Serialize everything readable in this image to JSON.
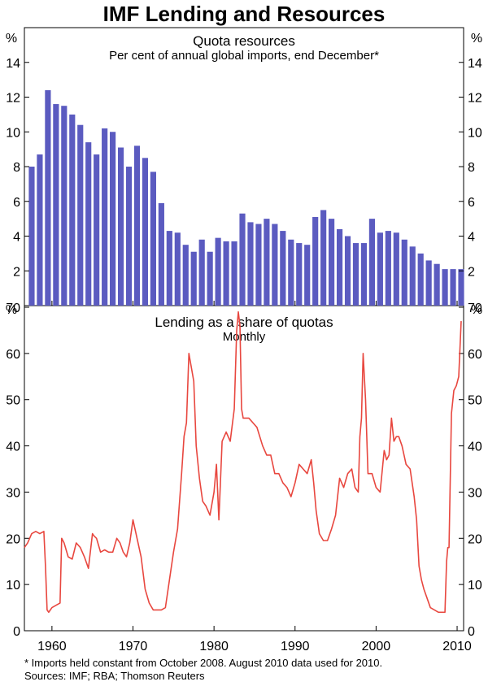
{
  "title": "IMF Lending and Resources",
  "footnotes": {
    "note": "*  Imports held constant from October 2008. August 2010 data used for 2010.",
    "sources": "Sources: IMF; RBA; Thomson Reuters"
  },
  "colors": {
    "bar": "#5b5bc0",
    "line": "#e8473f",
    "axis": "#000000"
  },
  "x_axis": {
    "ticks": [
      1960,
      1970,
      1980,
      1990,
      2000,
      2010
    ],
    "tick_labels": [
      "1960",
      "1970",
      "1980",
      "1990",
      "2000",
      "2010"
    ],
    "range": [
      1956.6,
      2010.8
    ]
  },
  "chart_data": [
    {
      "type": "bar",
      "title": "Quota resources",
      "subtitle": "Per cent of annual global imports, end December*",
      "unit_left": "%",
      "unit_right": "%",
      "ylim": [
        0,
        16
      ],
      "yticks": [
        2,
        4,
        6,
        8,
        10,
        12,
        14
      ],
      "categories": [
        1957,
        1958,
        1959,
        1960,
        1961,
        1962,
        1963,
        1964,
        1965,
        1966,
        1967,
        1968,
        1969,
        1970,
        1971,
        1972,
        1973,
        1974,
        1975,
        1976,
        1977,
        1978,
        1979,
        1980,
        1981,
        1982,
        1983,
        1984,
        1985,
        1986,
        1987,
        1988,
        1989,
        1990,
        1991,
        1992,
        1993,
        1994,
        1995,
        1996,
        1997,
        1998,
        1999,
        2000,
        2001,
        2002,
        2003,
        2004,
        2005,
        2006,
        2007,
        2008,
        2009,
        2010
      ],
      "values": [
        8.0,
        8.7,
        12.4,
        11.6,
        11.5,
        11.0,
        10.4,
        9.4,
        8.7,
        10.2,
        10.0,
        9.1,
        8.0,
        9.2,
        8.5,
        7.7,
        5.9,
        4.3,
        4.2,
        3.5,
        3.1,
        3.8,
        3.1,
        3.9,
        3.7,
        3.7,
        5.3,
        4.8,
        4.7,
        5.0,
        4.7,
        4.3,
        3.8,
        3.6,
        3.5,
        5.1,
        5.5,
        5.0,
        4.4,
        4.0,
        3.6,
        3.6,
        5.0,
        4.2,
        4.3,
        4.2,
        3.8,
        3.4,
        3.0,
        2.6,
        2.4,
        2.1,
        2.1,
        2.1
      ]
    },
    {
      "type": "line",
      "title": "Lending as a share of quotas",
      "subtitle": "Monthly",
      "unit_left": "%",
      "unit_right": "%",
      "ylim": [
        0,
        70
      ],
      "yticks": [
        0,
        10,
        20,
        30,
        40,
        50,
        60,
        70
      ],
      "x": [
        1956.6,
        1957.0,
        1957.5,
        1958.0,
        1958.5,
        1959.0,
        1959.2,
        1959.4,
        1959.6,
        1960.0,
        1960.5,
        1961.0,
        1961.2,
        1961.5,
        1962.0,
        1962.5,
        1963.0,
        1963.5,
        1964.0,
        1964.5,
        1965.0,
        1965.2,
        1965.5,
        1966.0,
        1966.5,
        1967.0,
        1967.5,
        1968.0,
        1968.4,
        1968.8,
        1969.2,
        1969.6,
        1970.0,
        1970.5,
        1971.0,
        1971.5,
        1972.0,
        1972.5,
        1973.0,
        1973.5,
        1974.0,
        1974.5,
        1975.0,
        1975.5,
        1976.0,
        1976.3,
        1976.6,
        1976.9,
        1977.2,
        1977.5,
        1977.8,
        1978.2,
        1978.6,
        1979.0,
        1979.5,
        1980.0,
        1980.3,
        1980.6,
        1981.0,
        1981.5,
        1982.0,
        1982.5,
        1982.8,
        1983.0,
        1983.2,
        1983.4,
        1983.6,
        1983.9,
        1984.3,
        1984.8,
        1985.3,
        1986.0,
        1986.5,
        1987.0,
        1987.5,
        1988.0,
        1988.5,
        1989.0,
        1989.5,
        1990.0,
        1990.5,
        1991.0,
        1991.5,
        1992.0,
        1992.3,
        1992.6,
        1993.0,
        1993.5,
        1994.0,
        1994.5,
        1995.0,
        1995.5,
        1996.0,
        1996.5,
        1997.0,
        1997.4,
        1997.8,
        1998.0,
        1998.2,
        1998.4,
        1998.7,
        1999.0,
        1999.5,
        2000.0,
        2000.5,
        2001.0,
        2001.3,
        2001.6,
        2001.9,
        2002.2,
        2002.5,
        2002.8,
        2003.2,
        2003.7,
        2004.2,
        2004.7,
        2005.0,
        2005.3,
        2005.6,
        2005.9,
        2006.3,
        2006.7,
        2007.2,
        2007.7,
        2008.2,
        2008.5,
        2008.7,
        2008.85,
        2009.0,
        2009.3,
        2009.6,
        2009.9,
        2010.2,
        2010.5
      ],
      "y": [
        18,
        19,
        21,
        21.5,
        21,
        21.5,
        14,
        4.5,
        4,
        5,
        5.5,
        6,
        20,
        19,
        16,
        15.5,
        19,
        18,
        16,
        13.5,
        21,
        20.5,
        20,
        17,
        17.5,
        17,
        17,
        20,
        19,
        17,
        16,
        19,
        24,
        20,
        16,
        9,
        6,
        4.5,
        4.5,
        4.5,
        5,
        11,
        17,
        22,
        34,
        42,
        45,
        60,
        57,
        54,
        40,
        33,
        28,
        27,
        25,
        30,
        36,
        24,
        41,
        43,
        41,
        48,
        65,
        69,
        66,
        48,
        46,
        46,
        46,
        45,
        44,
        40,
        38,
        38,
        34,
        34,
        32,
        31,
        29,
        32,
        36,
        35,
        34,
        37,
        32,
        26,
        21,
        19.5,
        19.5,
        22,
        25,
        33,
        31,
        34,
        35,
        31,
        30,
        42,
        46,
        60,
        50,
        34,
        34,
        31,
        30,
        39,
        37,
        38,
        46,
        41,
        42,
        42,
        40,
        36,
        35,
        29,
        24,
        14,
        11,
        9,
        7,
        5,
        4.5,
        4,
        4,
        4,
        15,
        18,
        18,
        47,
        52,
        53,
        55,
        67
      ]
    }
  ]
}
